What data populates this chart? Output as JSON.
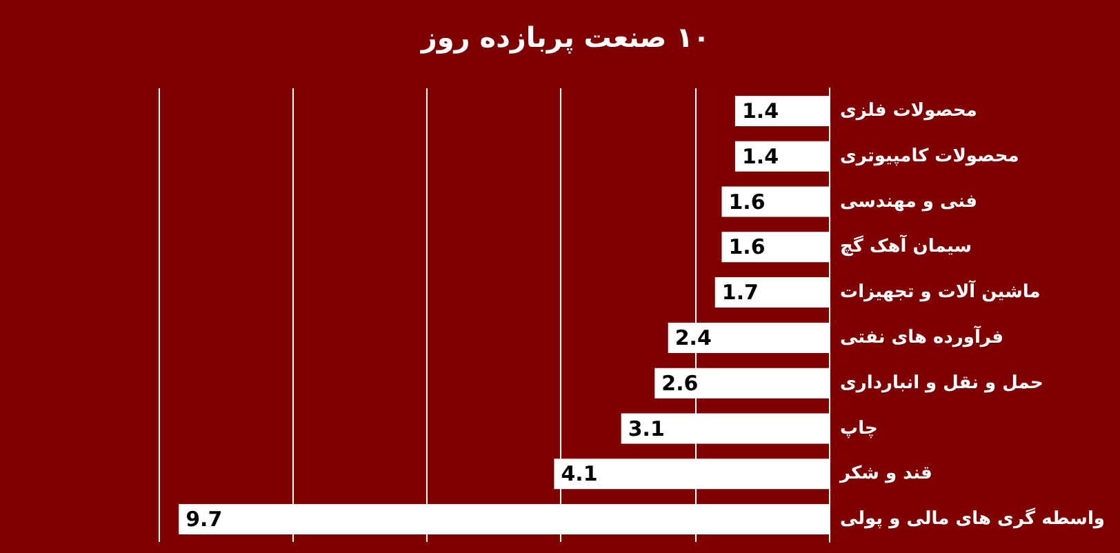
{
  "chart_data": {
    "type": "bar",
    "orientation": "horizontal",
    "title": "۱۰ صنعت پربازده روز",
    "categories": [
      "محصولات فلزی",
      "محصولات کامپیوتری",
      "فنی و مهندسی",
      "سیمان آهک گچ",
      "ماشین آلات و تجهیزات",
      "فرآورده های نفتی",
      "حمل و نقل و انبارداری",
      "چاپ",
      "قند و شکر",
      "واسطه گری های مالی و پولی"
    ],
    "values": [
      1.4,
      1.4,
      1.6,
      1.6,
      1.7,
      2.4,
      2.6,
      3.1,
      4.1,
      9.7
    ],
    "color": "#ffffff",
    "data_labels": true,
    "grid": "x",
    "tick_labels": "y",
    "xlim": [
      10,
      0
    ],
    "xticks": [
      {
        "value": 0,
        "label": null
      },
      {
        "value": 2,
        "label": null
      },
      {
        "value": 4,
        "label": null
      },
      {
        "value": 6,
        "label": null
      },
      {
        "value": 8,
        "label": null
      },
      {
        "value": 10,
        "label": null
      }
    ]
  }
}
